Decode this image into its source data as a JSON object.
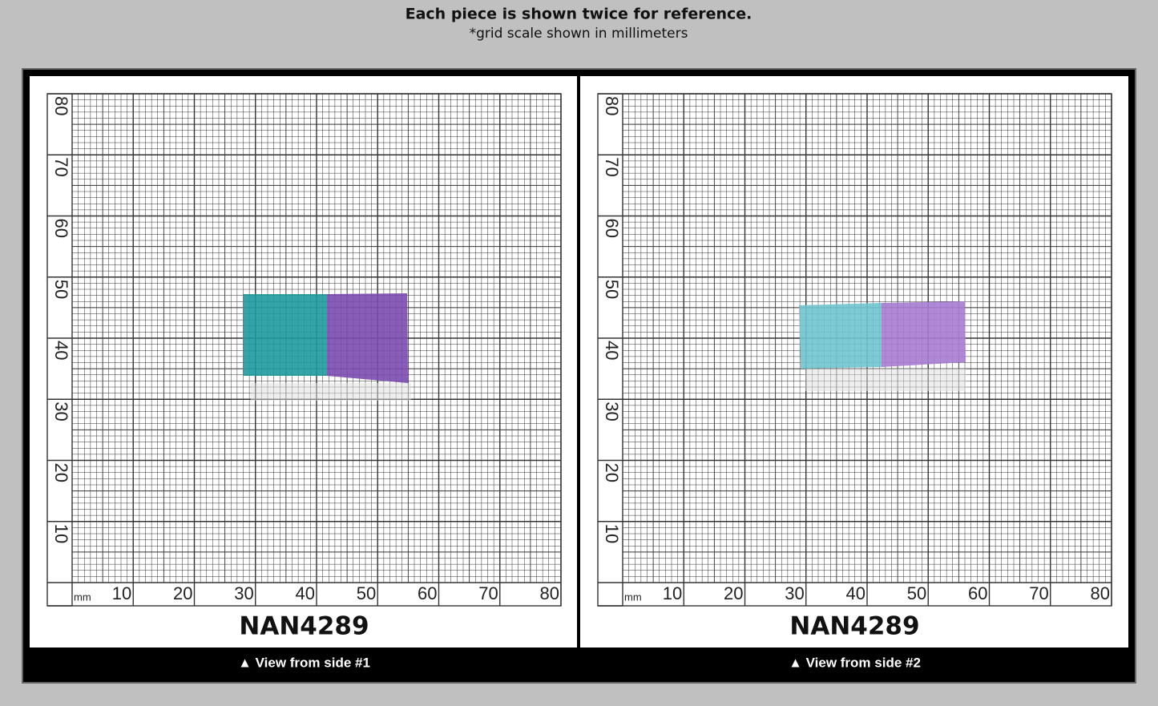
{
  "header": {
    "title": "Each piece is shown twice for reference.",
    "subtitle": "*grid scale shown in millimeters"
  },
  "panels": [
    {
      "grid": {
        "unit": "mm",
        "x_labels": [
          10,
          20,
          30,
          40,
          50,
          60,
          70,
          80
        ],
        "y_labels": [
          10,
          20,
          30,
          40,
          50,
          60,
          70,
          80
        ]
      },
      "label": "NAN4289",
      "caption": "▲ View from side #1"
    },
    {
      "grid": {
        "unit": "mm",
        "x_labels": [
          10,
          20,
          30,
          40,
          50,
          60,
          70,
          80
        ],
        "y_labels": [
          10,
          20,
          30,
          40,
          50,
          60,
          70,
          80
        ]
      },
      "label": "NAN4289",
      "caption": "▲ View from side #2"
    }
  ]
}
